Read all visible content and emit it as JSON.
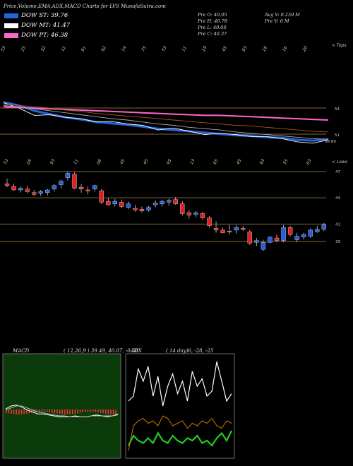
{
  "header": "Price,Volume,EMA,ADX,MACD Charts for LVS MunafaSutra.com",
  "legend": [
    {
      "label": "DOW ST: 39.76",
      "color": "#2266dd"
    },
    {
      "label": "DOW MT: 41.47",
      "color": "#ffffff"
    },
    {
      "label": "DOW PT: 46.38",
      "color": "#ff66cc"
    }
  ],
  "ohlc": {
    "open": "Pre  O: 40.05",
    "high": "Pre  H: 40.78",
    "low": "Pre  L: 40.00",
    "close": "Pre  C: 40.37",
    "avg_vol": "Avg V: 0.259 M",
    "vol": "Pre  V: 6  M"
  },
  "ema_panel": {
    "tag": "< Tops",
    "levels": [
      "54",
      "51",
      "58.69"
    ],
    "top_dates": [
      "53",
      "25",
      "52",
      "11",
      "91",
      "92",
      "14",
      "75",
      "53",
      "11",
      "19",
      "45",
      "93",
      "16",
      "16",
      "20"
    ],
    "bottom_dates": [
      "53",
      "05",
      "93",
      "11",
      "06",
      "45",
      "45",
      "95",
      "13",
      "65",
      "45",
      "93",
      "55",
      "03"
    ]
  },
  "price_panel": {
    "tag": "< Lows",
    "levels": [
      "47",
      "44",
      "41",
      "39"
    ]
  },
  "macd": {
    "label": "MACD",
    "params": "( 12,26,9 ) 39.49, 40.07, -0.58"
  },
  "adx": {
    "label": "ADX",
    "params": "( 14  day)6, -28, -25"
  },
  "chart_data": {
    "type": "candlestick",
    "candles": [
      {
        "o": 45.6,
        "h": 46.2,
        "l": 45.2,
        "c": 45.4
      },
      {
        "o": 45.3,
        "h": 45.6,
        "l": 44.8,
        "c": 44.9
      },
      {
        "o": 44.9,
        "h": 45.3,
        "l": 44.6,
        "c": 45.1
      },
      {
        "o": 45.0,
        "h": 45.4,
        "l": 44.5,
        "c": 44.7
      },
      {
        "o": 44.6,
        "h": 44.9,
        "l": 44.2,
        "c": 44.4
      },
      {
        "o": 44.5,
        "h": 44.9,
        "l": 44.2,
        "c": 44.7
      },
      {
        "o": 44.6,
        "h": 45.0,
        "l": 44.3,
        "c": 44.9
      },
      {
        "o": 45.0,
        "h": 45.6,
        "l": 44.7,
        "c": 45.4
      },
      {
        "o": 45.5,
        "h": 46.1,
        "l": 45.1,
        "c": 45.9
      },
      {
        "o": 46.3,
        "h": 47.0,
        "l": 46.0,
        "c": 46.8
      },
      {
        "o": 46.7,
        "h": 46.9,
        "l": 45.0,
        "c": 45.1
      },
      {
        "o": 45.2,
        "h": 45.6,
        "l": 44.6,
        "c": 45.0
      },
      {
        "o": 44.9,
        "h": 45.3,
        "l": 44.4,
        "c": 44.8
      },
      {
        "o": 45.0,
        "h": 45.5,
        "l": 44.7,
        "c": 45.4
      },
      {
        "o": 44.8,
        "h": 45.0,
        "l": 43.3,
        "c": 43.5
      },
      {
        "o": 43.6,
        "h": 44.0,
        "l": 43.1,
        "c": 43.2
      },
      {
        "o": 43.3,
        "h": 43.9,
        "l": 43.0,
        "c": 43.6
      },
      {
        "o": 43.5,
        "h": 43.8,
        "l": 42.8,
        "c": 43.0
      },
      {
        "o": 42.9,
        "h": 43.6,
        "l": 42.7,
        "c": 43.3
      },
      {
        "o": 42.8,
        "h": 43.2,
        "l": 42.4,
        "c": 42.6
      },
      {
        "o": 42.7,
        "h": 43.0,
        "l": 42.3,
        "c": 42.5
      },
      {
        "o": 42.6,
        "h": 43.1,
        "l": 42.4,
        "c": 42.9
      },
      {
        "o": 43.2,
        "h": 43.7,
        "l": 42.9,
        "c": 43.4
      },
      {
        "o": 43.3,
        "h": 43.8,
        "l": 43.0,
        "c": 43.6
      },
      {
        "o": 43.5,
        "h": 43.9,
        "l": 43.1,
        "c": 43.7
      },
      {
        "o": 43.8,
        "h": 44.1,
        "l": 43.2,
        "c": 43.3
      },
      {
        "o": 43.3,
        "h": 43.6,
        "l": 42.0,
        "c": 42.2
      },
      {
        "o": 42.3,
        "h": 42.6,
        "l": 41.6,
        "c": 42.0
      },
      {
        "o": 42.1,
        "h": 42.5,
        "l": 41.8,
        "c": 42.3
      },
      {
        "o": 42.2,
        "h": 42.4,
        "l": 41.5,
        "c": 41.7
      },
      {
        "o": 41.7,
        "h": 41.9,
        "l": 40.6,
        "c": 40.8
      },
      {
        "o": 40.5,
        "h": 41.3,
        "l": 40.0,
        "c": 40.3
      },
      {
        "o": 40.3,
        "h": 40.6,
        "l": 39.9,
        "c": 40.0
      },
      {
        "o": 40.2,
        "h": 40.9,
        "l": 39.8,
        "c": 40.1
      },
      {
        "o": 40.3,
        "h": 40.9,
        "l": 39.9,
        "c": 40.6
      },
      {
        "o": 40.5,
        "h": 40.8,
        "l": 40.2,
        "c": 40.4
      },
      {
        "o": 40.1,
        "h": 40.3,
        "l": 38.6,
        "c": 38.8
      },
      {
        "o": 38.9,
        "h": 39.4,
        "l": 38.5,
        "c": 39.1
      },
      {
        "o": 38.1,
        "h": 39.2,
        "l": 37.9,
        "c": 38.9
      },
      {
        "o": 38.9,
        "h": 39.6,
        "l": 38.8,
        "c": 39.5
      },
      {
        "o": 39.4,
        "h": 39.8,
        "l": 38.9,
        "c": 39.1
      },
      {
        "o": 39.1,
        "h": 40.9,
        "l": 38.9,
        "c": 40.6
      },
      {
        "o": 40.6,
        "h": 40.8,
        "l": 39.6,
        "c": 39.8
      },
      {
        "o": 39.2,
        "h": 40.0,
        "l": 38.9,
        "c": 39.6
      },
      {
        "o": 39.5,
        "h": 40.0,
        "l": 39.2,
        "c": 39.8
      },
      {
        "o": 39.6,
        "h": 40.5,
        "l": 39.4,
        "c": 40.3
      },
      {
        "o": 40.1,
        "h": 40.8,
        "l": 40.0,
        "c": 40.4
      },
      {
        "o": 40.4,
        "h": 41.1,
        "l": 40.2,
        "c": 40.9
      }
    ],
    "ema_lines": [
      {
        "name": "DOW ST",
        "color": "#2266dd",
        "values": [
          56.5,
          56.0,
          55.2,
          54.7,
          54.2,
          53.9,
          53.5,
          53.3,
          53.1,
          52.8,
          52.5,
          52.3,
          52.1,
          51.9,
          51.7,
          51.5,
          51.4,
          51.2,
          51.1,
          50.8,
          50.7,
          50.9
        ]
      },
      {
        "name": "DOW MT",
        "color": "#ffffff",
        "values": [
          56.4,
          55.6,
          54.5,
          54.6,
          54.2,
          54.0,
          53.5,
          53.6,
          53.2,
          53.0,
          52.3,
          52.6,
          52.1,
          51.6,
          51.8,
          51.6,
          51.3,
          51.3,
          51.0,
          50.5,
          50.3,
          50.8
        ]
      },
      {
        "name": "DOW PT",
        "color": "#ff66cc",
        "values": [
          55.8,
          55.7,
          55.6,
          55.5,
          55.4,
          55.3,
          55.2,
          55.1,
          55.0,
          54.9,
          54.8,
          54.7,
          54.6,
          54.5,
          54.5,
          54.4,
          54.3,
          54.2,
          54.1,
          54.0,
          53.9,
          53.8
        ]
      },
      {
        "name": "",
        "color": "#aa5522",
        "values": [
          56.2,
          56.0,
          55.8,
          55.6,
          55.3,
          55.1,
          54.8,
          54.6,
          54.4,
          54.2,
          54.0,
          53.8,
          53.6,
          53.4,
          53.2,
          53.0,
          52.9,
          52.7,
          52.5,
          52.3,
          52.1,
          52.0
        ]
      },
      {
        "name": "",
        "color": "#aaaaaa",
        "values": [
          56.0,
          55.8,
          55.5,
          55.2,
          54.9,
          54.6,
          54.3,
          54.0,
          53.8,
          53.5,
          53.2,
          53.0,
          52.7,
          52.5,
          52.3,
          52.0,
          51.8,
          51.6,
          51.4,
          51.2,
          51.0,
          50.9
        ]
      }
    ],
    "macd": {
      "macd_line": [
        0.2,
        0.5,
        0.6,
        0.4,
        0.1,
        -0.1,
        -0.3,
        -0.3,
        -0.4,
        -0.5,
        -0.6,
        -0.6,
        -0.6,
        -0.5,
        -0.6,
        -0.6,
        -0.5,
        -0.4,
        -0.5,
        -0.6,
        -0.5,
        -0.3
      ],
      "signal_line": [
        0.1,
        0.3,
        0.5,
        0.5,
        0.3,
        0.1,
        -0.1,
        -0.2,
        -0.3,
        -0.4,
        -0.5,
        -0.5,
        -0.6,
        -0.6,
        -0.6,
        -0.6,
        -0.5,
        -0.5,
        -0.5,
        -0.5,
        -0.5,
        -0.4
      ]
    },
    "adx": {
      "adx_line": [
        22,
        24,
        35,
        30,
        36,
        24,
        32,
        20,
        28,
        33,
        25,
        30,
        22,
        34,
        28,
        31,
        24,
        26,
        38,
        30,
        22,
        25
      ],
      "plus_di": [
        4,
        8,
        6,
        5,
        7,
        5,
        9,
        6,
        5,
        8,
        6,
        5,
        7,
        6,
        8,
        5,
        6,
        4,
        7,
        9,
        6,
        10
      ],
      "minus_di": [
        2,
        12,
        14,
        15,
        13,
        14,
        12,
        16,
        15,
        12,
        13,
        14,
        11,
        13,
        12,
        14,
        13,
        15,
        12,
        11,
        14,
        13
      ]
    }
  }
}
